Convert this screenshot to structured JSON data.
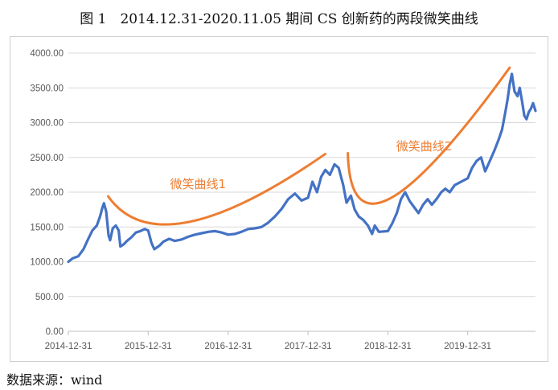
{
  "title": "图 1　2014.12.31-2020.11.05 期间 CS 创新药的两段微笑曲线",
  "source": "数据来源：wind",
  "colors": {
    "series": "#4472c4",
    "smile": "#ed7d31",
    "grid": "#d9d9d9",
    "axis": "#bfbfbf"
  },
  "chart_data": {
    "type": "line",
    "title": "",
    "xlabel": "",
    "ylabel": "",
    "ylim": [
      0,
      4000
    ],
    "yticks": [
      "0.00",
      "500.00",
      "1000.00",
      "1500.00",
      "2000.00",
      "2500.00",
      "3000.00",
      "3500.00",
      "4000.00"
    ],
    "xlim": [
      "2014-12-31",
      "2020-11-05"
    ],
    "xticks": [
      "2014-12-31",
      "2015-12-31",
      "2016-12-31",
      "2017-12-31",
      "2018-12-31",
      "2019-12-31"
    ],
    "grid": "horizontal",
    "legend": "none",
    "series": [
      {
        "color": "#4472c4",
        "points": [
          [
            "2014-12-31",
            1000
          ],
          [
            "2015-01-20",
            1050
          ],
          [
            "2015-02-15",
            1080
          ],
          [
            "2015-03-10",
            1180
          ],
          [
            "2015-04-01",
            1330
          ],
          [
            "2015-04-20",
            1450
          ],
          [
            "2015-05-10",
            1520
          ],
          [
            "2015-05-25",
            1650
          ],
          [
            "2015-06-05",
            1780
          ],
          [
            "2015-06-12",
            1840
          ],
          [
            "2015-06-22",
            1720
          ],
          [
            "2015-07-03",
            1380
          ],
          [
            "2015-07-10",
            1310
          ],
          [
            "2015-07-22",
            1480
          ],
          [
            "2015-08-05",
            1520
          ],
          [
            "2015-08-18",
            1450
          ],
          [
            "2015-08-26",
            1220
          ],
          [
            "2015-09-10",
            1250
          ],
          [
            "2015-09-25",
            1300
          ],
          [
            "2015-10-15",
            1350
          ],
          [
            "2015-11-05",
            1420
          ],
          [
            "2015-11-25",
            1440
          ],
          [
            "2015-12-15",
            1470
          ],
          [
            "2015-12-31",
            1450
          ],
          [
            "2016-01-15",
            1270
          ],
          [
            "2016-01-28",
            1180
          ],
          [
            "2016-02-20",
            1230
          ],
          [
            "2016-03-10",
            1290
          ],
          [
            "2016-04-05",
            1330
          ],
          [
            "2016-05-01",
            1300
          ],
          [
            "2016-06-01",
            1320
          ],
          [
            "2016-07-01",
            1360
          ],
          [
            "2016-08-01",
            1390
          ],
          [
            "2016-09-01",
            1410
          ],
          [
            "2016-10-01",
            1430
          ],
          [
            "2016-11-01",
            1440
          ],
          [
            "2016-12-01",
            1420
          ],
          [
            "2016-12-31",
            1390
          ],
          [
            "2017-02-01",
            1400
          ],
          [
            "2017-03-01",
            1430
          ],
          [
            "2017-04-01",
            1470
          ],
          [
            "2017-05-01",
            1480
          ],
          [
            "2017-06-01",
            1500
          ],
          [
            "2017-07-01",
            1560
          ],
          [
            "2017-08-01",
            1650
          ],
          [
            "2017-09-01",
            1760
          ],
          [
            "2017-10-01",
            1900
          ],
          [
            "2017-11-01",
            1980
          ],
          [
            "2017-12-01",
            1880
          ],
          [
            "2017-12-31",
            1920
          ],
          [
            "2018-01-20",
            2150
          ],
          [
            "2018-02-10",
            2000
          ],
          [
            "2018-03-01",
            2220
          ],
          [
            "2018-03-20",
            2320
          ],
          [
            "2018-04-10",
            2250
          ],
          [
            "2018-05-01",
            2400
          ],
          [
            "2018-05-20",
            2350
          ],
          [
            "2018-06-10",
            2100
          ],
          [
            "2018-06-25",
            1850
          ],
          [
            "2018-07-15",
            1950
          ],
          [
            "2018-08-01",
            1750
          ],
          [
            "2018-08-20",
            1650
          ],
          [
            "2018-09-10",
            1600
          ],
          [
            "2018-10-01",
            1520
          ],
          [
            "2018-10-20",
            1400
          ],
          [
            "2018-11-01",
            1520
          ],
          [
            "2018-11-20",
            1430
          ],
          [
            "2018-12-31",
            1440
          ],
          [
            "2019-01-20",
            1550
          ],
          [
            "2019-02-10",
            1700
          ],
          [
            "2019-03-01",
            1900
          ],
          [
            "2019-03-20",
            2000
          ],
          [
            "2019-04-10",
            1870
          ],
          [
            "2019-05-01",
            1780
          ],
          [
            "2019-05-20",
            1700
          ],
          [
            "2019-06-10",
            1820
          ],
          [
            "2019-07-01",
            1900
          ],
          [
            "2019-07-20",
            1820
          ],
          [
            "2019-08-10",
            1900
          ],
          [
            "2019-09-01",
            2000
          ],
          [
            "2019-09-20",
            2050
          ],
          [
            "2019-10-10",
            2000
          ],
          [
            "2019-11-01",
            2100
          ],
          [
            "2019-12-01",
            2150
          ],
          [
            "2019-12-31",
            2200
          ],
          [
            "2020-01-20",
            2350
          ],
          [
            "2020-02-10",
            2450
          ],
          [
            "2020-03-01",
            2500
          ],
          [
            "2020-03-20",
            2300
          ],
          [
            "2020-04-10",
            2450
          ],
          [
            "2020-05-01",
            2600
          ],
          [
            "2020-05-20",
            2750
          ],
          [
            "2020-06-05",
            2900
          ],
          [
            "2020-06-20",
            3150
          ],
          [
            "2020-07-01",
            3350
          ],
          [
            "2020-07-10",
            3550
          ],
          [
            "2020-07-20",
            3700
          ],
          [
            "2020-08-01",
            3450
          ],
          [
            "2020-08-15",
            3380
          ],
          [
            "2020-08-25",
            3500
          ],
          [
            "2020-09-05",
            3300
          ],
          [
            "2020-09-15",
            3100
          ],
          [
            "2020-09-25",
            3050
          ],
          [
            "2020-10-05",
            3150
          ],
          [
            "2020-10-15",
            3200
          ],
          [
            "2020-10-25",
            3280
          ],
          [
            "2020-11-05",
            3170
          ]
        ]
      }
    ],
    "annotations": [
      {
        "text": "微笑曲线1",
        "color": "#ed7d31",
        "text_at": [
          "2016-08-15",
          2060
        ],
        "curve": [
          [
            "2015-07-01",
            1940
          ],
          [
            "2016-07-01",
            1570
          ],
          [
            "2018-03-20",
            2550
          ]
        ]
      },
      {
        "text": "微笑曲线2",
        "color": "#ed7d31",
        "text_at": [
          "2019-06-15",
          2600
        ],
        "curve": [
          [
            "2018-07-01",
            2560
          ],
          [
            "2019-01-10",
            1910
          ],
          [
            "2020-07-10",
            3790
          ]
        ]
      }
    ]
  }
}
